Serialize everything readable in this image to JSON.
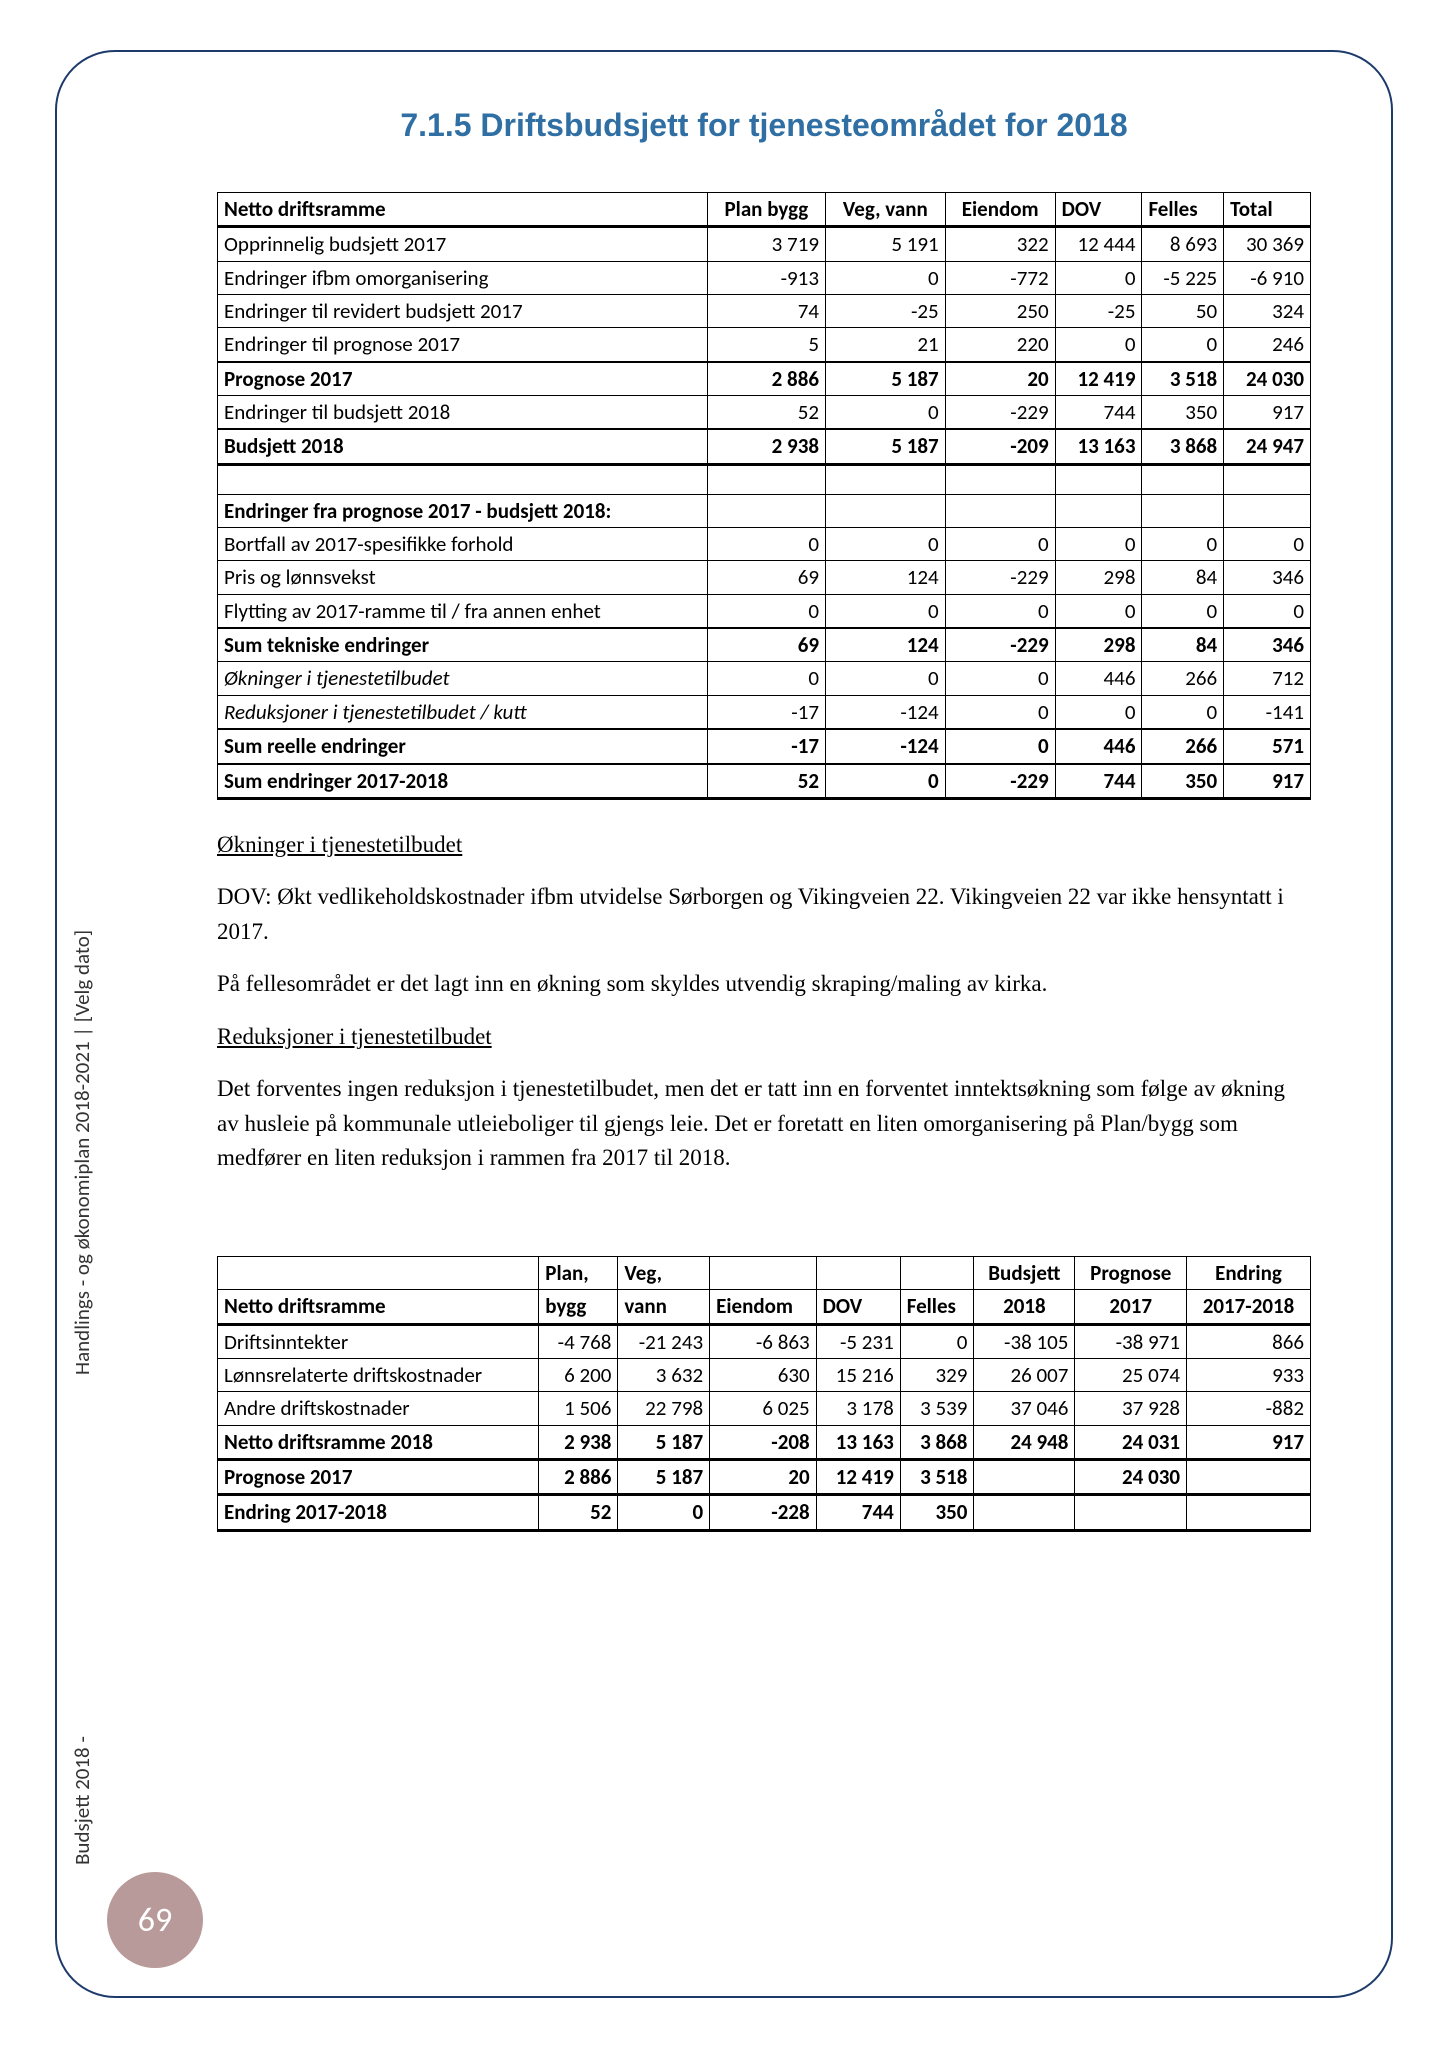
{
  "title": "7.1.5 Driftsbudsjett for tjenesteområdet for 2018",
  "table1": {
    "columns": [
      "Netto driftsramme",
      "Plan bygg",
      "Veg, vann",
      "Eiendom",
      "DOV",
      "Felles",
      "Total"
    ],
    "rows": [
      {
        "label": "Opprinnelig budsjett 2017",
        "v": [
          "3 719",
          "5 191",
          "322",
          "12 444",
          "8 693",
          "30 369"
        ]
      },
      {
        "label": "Endringer ifbm omorganisering",
        "v": [
          "-913",
          "0",
          "-772",
          "0",
          "-5 225",
          "-6 910"
        ]
      },
      {
        "label": "Endringer til revidert budsjett 2017",
        "v": [
          "74",
          "-25",
          "250",
          "-25",
          "50",
          "324"
        ]
      },
      {
        "label": "Endringer til prognose 2017",
        "v": [
          "5",
          "21",
          "220",
          "0",
          "0",
          "246"
        ]
      },
      {
        "label": "Prognose 2017",
        "v": [
          "2 886",
          "5 187",
          "20",
          "12 419",
          "3 518",
          "24 030"
        ],
        "bold": true,
        "thickTop": true
      },
      {
        "label": "Endringer til budsjett 2018",
        "v": [
          "52",
          "0",
          "-229",
          "744",
          "350",
          "917"
        ]
      },
      {
        "label": "Budsjett 2018",
        "v": [
          "2 938",
          "5 187",
          "-209",
          "13 163",
          "3 868",
          "24 947"
        ],
        "bold": true,
        "thickTop": true,
        "thickBottom": true
      },
      {
        "blank": true
      },
      {
        "label": "Endringer fra prognose 2017 - budsjett 2018:",
        "v": [
          "",
          "",
          "",
          "",
          "",
          ""
        ],
        "bold": true
      },
      {
        "label": "Bortfall av 2017-spesifikke forhold",
        "v": [
          "0",
          "0",
          "0",
          "0",
          "0",
          "0"
        ]
      },
      {
        "label": "Pris og lønnsvekst",
        "v": [
          "69",
          "124",
          "-229",
          "298",
          "84",
          "346"
        ]
      },
      {
        "label": "Flytting av 2017-ramme til / fra annen enhet",
        "v": [
          "0",
          "0",
          "0",
          "0",
          "0",
          "0"
        ]
      },
      {
        "label": "Sum tekniske endringer",
        "v": [
          "69",
          "124",
          "-229",
          "298",
          "84",
          "346"
        ],
        "bold": true,
        "thickTop": true
      },
      {
        "label": "Økninger i tjenestetilbudet",
        "v": [
          "0",
          "0",
          "0",
          "446",
          "266",
          "712"
        ],
        "italic": true
      },
      {
        "label": "Reduksjoner i tjenestetilbudet / kutt",
        "v": [
          "-17",
          "-124",
          "0",
          "0",
          "0",
          "-141"
        ],
        "italic": true
      },
      {
        "label": "Sum reelle endringer",
        "v": [
          "-17",
          "-124",
          "0",
          "446",
          "266",
          "571"
        ],
        "bold": true,
        "thickTop": true
      },
      {
        "label": "Sum endringer 2017-2018",
        "v": [
          "52",
          "0",
          "-229",
          "744",
          "350",
          "917"
        ],
        "bold": true,
        "thickTop": true,
        "thickBottom": true
      }
    ]
  },
  "paras": {
    "h1": "Økninger i tjenestetilbudet",
    "p1": "DOV: Økt vedlikeholdskostnader ifbm utvidelse Sørborgen og Vikingveien 22. Vikingveien 22 var ikke hensyntatt i 2017.",
    "p2": "På fellesområdet er det lagt inn en økning som skyldes utvendig skraping/maling av kirka.",
    "h2": "Reduksjoner i tjenestetilbudet",
    "p3": "Det forventes ingen reduksjon i tjenestetilbudet, men det er tatt inn en forventet inntektsøkning som følge av økning av husleie på kommunale utleieboliger til gjengs leie. Det er foretatt en liten omorganisering på Plan/bygg som medfører en liten reduksjon i rammen fra 2017 til 2018."
  },
  "table2": {
    "head1": [
      "",
      "Plan,",
      "Veg,",
      "",
      "",
      "",
      "Budsjett",
      "Prognose",
      "Endring"
    ],
    "head2": [
      "Netto driftsramme",
      "bygg",
      "vann",
      "Eiendom",
      "DOV",
      "Felles",
      "2018",
      "2017",
      "2017-2018"
    ],
    "rows": [
      {
        "label": "Driftsinntekter",
        "v": [
          "-4 768",
          "-21 243",
          "-6 863",
          "-5 231",
          "0",
          "-38 105",
          "-38 971",
          "866"
        ]
      },
      {
        "label": "Lønnsrelaterte driftskostnader",
        "v": [
          "6 200",
          "3 632",
          "630",
          "15 216",
          "329",
          "26 007",
          "25 074",
          "933"
        ]
      },
      {
        "label": "Andre driftskostnader",
        "v": [
          "1 506",
          "22 798",
          "6 025",
          "3 178",
          "3 539",
          "37 046",
          "37 928",
          "-882"
        ]
      },
      {
        "label": "Netto driftsramme 2018",
        "v": [
          "2 938",
          "5 187",
          "-208",
          "13 163",
          "3 868",
          "24 948",
          "24 031",
          "917"
        ],
        "bold": true,
        "thickTop": true,
        "thickBottom": true
      },
      {
        "label": "Prognose 2017",
        "v": [
          "2 886",
          "5 187",
          "20",
          "12 419",
          "3 518",
          "",
          "24 030",
          ""
        ],
        "bold": true,
        "thickBottom": true
      },
      {
        "label": "Endring 2017-2018",
        "v": [
          "52",
          "0",
          "-228",
          "744",
          "350",
          "",
          "",
          ""
        ],
        "bold": true,
        "thickBottom": true
      }
    ]
  },
  "side": {
    "top": "Handlings - og økonomiplan 2018-2021 | [Velg dato]",
    "bottom": "Budsjett 2018 -"
  },
  "pageNumber": "69"
}
